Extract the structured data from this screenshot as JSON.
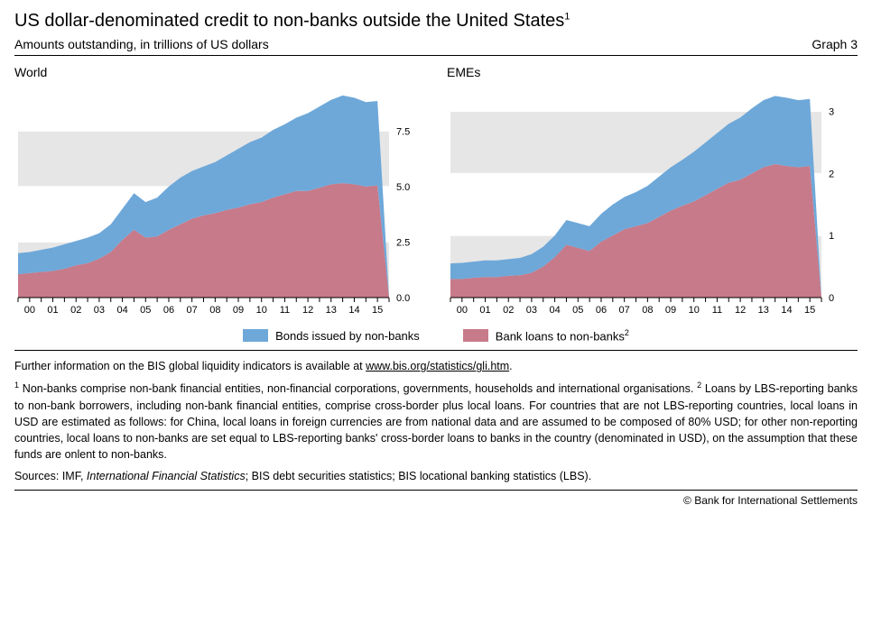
{
  "title": "US dollar-denominated credit to non-banks outside the United States",
  "title_sup": "1",
  "subtitle": "Amounts outstanding, in trillions of US dollars",
  "graph_label": "Graph 3",
  "legend": {
    "series1": {
      "label": "Bonds issued by non-banks",
      "color": "#6ea8d9"
    },
    "series2": {
      "label": "Bank loans to non-banks",
      "sup": "2",
      "color": "#c77a8a"
    }
  },
  "chart_common": {
    "plot_bg_colors": [
      "#e6e6e6",
      "#ffffff"
    ],
    "grid_color": "#ffffff",
    "axis_color": "#000000",
    "tick_color": "#000000",
    "label_fontsize": 12,
    "tick_fontsize": 11,
    "fill_opacity": 1.0,
    "x_labels": [
      "00",
      "01",
      "02",
      "03",
      "04",
      "05",
      "06",
      "07",
      "08",
      "09",
      "10",
      "11",
      "12",
      "13",
      "14",
      "15"
    ]
  },
  "panels": [
    {
      "title": "World",
      "ylim": [
        0,
        9.5
      ],
      "yticks": [
        0.0,
        2.5,
        5.0,
        7.5
      ],
      "ytick_labels": [
        "0.0",
        "2.5",
        "5.0",
        "7.5"
      ],
      "loans": [
        1.05,
        1.1,
        1.15,
        1.2,
        1.3,
        1.45,
        1.55,
        1.75,
        2.05,
        2.6,
        3.05,
        2.7,
        2.75,
        3.05,
        3.3,
        3.55,
        3.7,
        3.8,
        3.95,
        4.05,
        4.2,
        4.3,
        4.5,
        4.65,
        4.8,
        4.8,
        4.95,
        5.1,
        5.15,
        5.1,
        5.0,
        5.05,
        0.0
      ],
      "total": [
        2.0,
        2.05,
        2.15,
        2.25,
        2.4,
        2.55,
        2.7,
        2.9,
        3.3,
        4.0,
        4.7,
        4.3,
        4.5,
        5.0,
        5.4,
        5.7,
        5.9,
        6.1,
        6.4,
        6.7,
        7.0,
        7.2,
        7.55,
        7.8,
        8.1,
        8.3,
        8.6,
        8.9,
        9.1,
        9.0,
        8.8,
        8.85,
        0.0
      ]
    },
    {
      "title": "EMEs",
      "ylim": [
        0,
        3.4
      ],
      "yticks": [
        0,
        1,
        2,
        3
      ],
      "ytick_labels": [
        "0",
        "1",
        "2",
        "3"
      ],
      "loans": [
        0.3,
        0.3,
        0.32,
        0.33,
        0.33,
        0.35,
        0.36,
        0.4,
        0.5,
        0.65,
        0.85,
        0.8,
        0.75,
        0.9,
        1.0,
        1.1,
        1.15,
        1.2,
        1.3,
        1.4,
        1.48,
        1.55,
        1.65,
        1.75,
        1.85,
        1.9,
        2.0,
        2.1,
        2.15,
        2.12,
        2.1,
        2.12,
        0.0
      ],
      "total": [
        0.55,
        0.56,
        0.58,
        0.6,
        0.6,
        0.62,
        0.64,
        0.7,
        0.82,
        1.0,
        1.25,
        1.2,
        1.15,
        1.35,
        1.5,
        1.62,
        1.7,
        1.8,
        1.95,
        2.1,
        2.22,
        2.35,
        2.5,
        2.65,
        2.8,
        2.9,
        3.05,
        3.18,
        3.25,
        3.22,
        3.18,
        3.2,
        0.0
      ]
    }
  ],
  "notes": {
    "info_prefix": "Further information on the BIS global liquidity indicators is available at ",
    "info_link_text": "www.bis.org/statistics/gli.htm",
    "info_suffix": ".",
    "fn1_sup": "1",
    "fn1_text": " Non-banks comprise non-bank financial entities, non-financial corporations, governments, households and international organisations.   ",
    "fn2_sup": "2",
    "fn2_text": " Loans by LBS-reporting banks to non-bank borrowers, including non-bank financial entities, comprise cross-border plus local loans. For countries that are not LBS-reporting countries, local loans in USD are estimated as follows: for China, local loans in foreign currencies are from national data and are assumed to be composed of 80% USD; for other non-reporting countries, local loans to non-banks are set equal to LBS-reporting banks' cross-border loans to banks in the country (denominated in USD), on the assumption that these funds are onlent to non-banks.",
    "sources_label": "Sources: ",
    "sources_text_before_em": "IMF, ",
    "sources_em": "International Financial Statistics",
    "sources_text_after_em": "; BIS debt securities statistics; BIS locational banking statistics (LBS).",
    "copyright": "© Bank for International Settlements"
  }
}
